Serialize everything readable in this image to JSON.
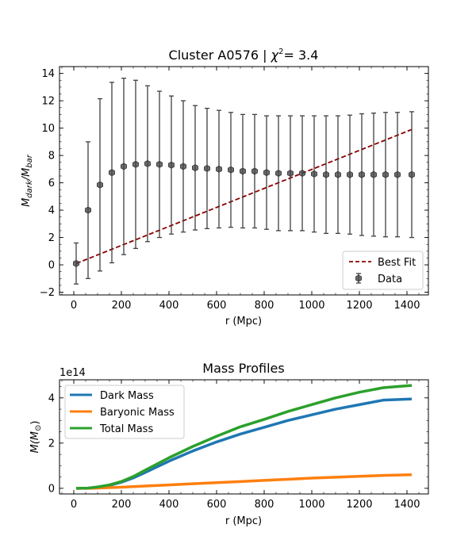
{
  "chart_data": [
    {
      "type": "scatter",
      "title_prefix": "Cluster A0576 | ",
      "title_chi": "χ",
      "title_sup": "2",
      "title_suffix": "= 3.4",
      "xlabel": "r (Mpc)",
      "ylabel_main": "M",
      "ylabel_sub1": "dark",
      "ylabel_slash": "/M",
      "ylabel_sub2": "bar",
      "xlim": [
        -60,
        1490
      ],
      "ylim": [
        -2.2,
        14.5
      ],
      "xticks": [
        0,
        200,
        400,
        600,
        800,
        1000,
        1200,
        1400
      ],
      "yticks": [
        -2,
        0,
        2,
        4,
        6,
        8,
        10,
        12,
        14
      ],
      "legend_position": "lower-right",
      "series": [
        {
          "name": "Best Fit",
          "kind": "line",
          "style": "dashed",
          "color": "#8b0000",
          "x": [
            10,
            1420
          ],
          "y": [
            0.1,
            9.9
          ]
        },
        {
          "name": "Data",
          "kind": "errorbar",
          "color": "#404040",
          "x": [
            10,
            60,
            110,
            160,
            210,
            260,
            310,
            360,
            410,
            460,
            510,
            560,
            610,
            660,
            710,
            760,
            810,
            860,
            910,
            960,
            1010,
            1060,
            1110,
            1160,
            1210,
            1260,
            1310,
            1360,
            1420
          ],
          "y": [
            0.1,
            4.0,
            5.85,
            6.75,
            7.2,
            7.35,
            7.4,
            7.35,
            7.3,
            7.2,
            7.1,
            7.05,
            7.0,
            6.95,
            6.85,
            6.85,
            6.75,
            6.7,
            6.7,
            6.7,
            6.65,
            6.6,
            6.6,
            6.6,
            6.6,
            6.6,
            6.6,
            6.6,
            6.6
          ],
          "yerr": [
            1.5,
            5.0,
            6.3,
            6.6,
            6.45,
            6.15,
            5.7,
            5.35,
            5.05,
            4.8,
            4.55,
            4.4,
            4.3,
            4.2,
            4.15,
            4.15,
            4.15,
            4.2,
            4.2,
            4.2,
            4.25,
            4.3,
            4.3,
            4.35,
            4.45,
            4.5,
            4.55,
            4.55,
            4.6
          ]
        }
      ]
    },
    {
      "type": "line",
      "title": "Mass Profiles",
      "xlabel": "r (Mpc)",
      "ylabel_main": "M(M",
      "ylabel_sub": "⊙",
      "ylabel_end": ")",
      "offset_label": "1e14",
      "xlim": [
        -60,
        1490
      ],
      "ylim": [
        -0.25,
        4.8
      ],
      "xticks": [
        0,
        200,
        400,
        600,
        800,
        1000,
        1200,
        1400
      ],
      "yticks": [
        0,
        2,
        4
      ],
      "legend_position": "upper-left",
      "series": [
        {
          "name": "Dark Mass",
          "color": "#1f77b4",
          "x": [
            10,
            60,
            100,
            150,
            200,
            250,
            300,
            400,
            500,
            600,
            700,
            800,
            900,
            1000,
            1100,
            1200,
            1300,
            1420
          ],
          "y": [
            0.0,
            0.01,
            0.05,
            0.13,
            0.27,
            0.46,
            0.7,
            1.2,
            1.65,
            2.05,
            2.4,
            2.7,
            3.0,
            3.25,
            3.5,
            3.7,
            3.9,
            3.95
          ]
        },
        {
          "name": "Baryonic Mass",
          "color": "#ff7f0e",
          "x": [
            10,
            60,
            100,
            200,
            300,
            400,
            500,
            600,
            700,
            800,
            900,
            1000,
            1100,
            1200,
            1300,
            1420
          ],
          "y": [
            0.0,
            0.0,
            0.01,
            0.05,
            0.1,
            0.15,
            0.2,
            0.25,
            0.3,
            0.35,
            0.4,
            0.45,
            0.49,
            0.53,
            0.57,
            0.6
          ]
        },
        {
          "name": "Total Mass",
          "color": "#2ca02c",
          "x": [
            10,
            60,
            100,
            150,
            200,
            250,
            300,
            400,
            500,
            600,
            700,
            800,
            900,
            1000,
            1100,
            1200,
            1300,
            1420
          ],
          "y": [
            0.0,
            0.01,
            0.06,
            0.15,
            0.3,
            0.52,
            0.8,
            1.35,
            1.85,
            2.3,
            2.72,
            3.05,
            3.4,
            3.7,
            4.0,
            4.25,
            4.45,
            4.55
          ]
        }
      ]
    }
  ]
}
